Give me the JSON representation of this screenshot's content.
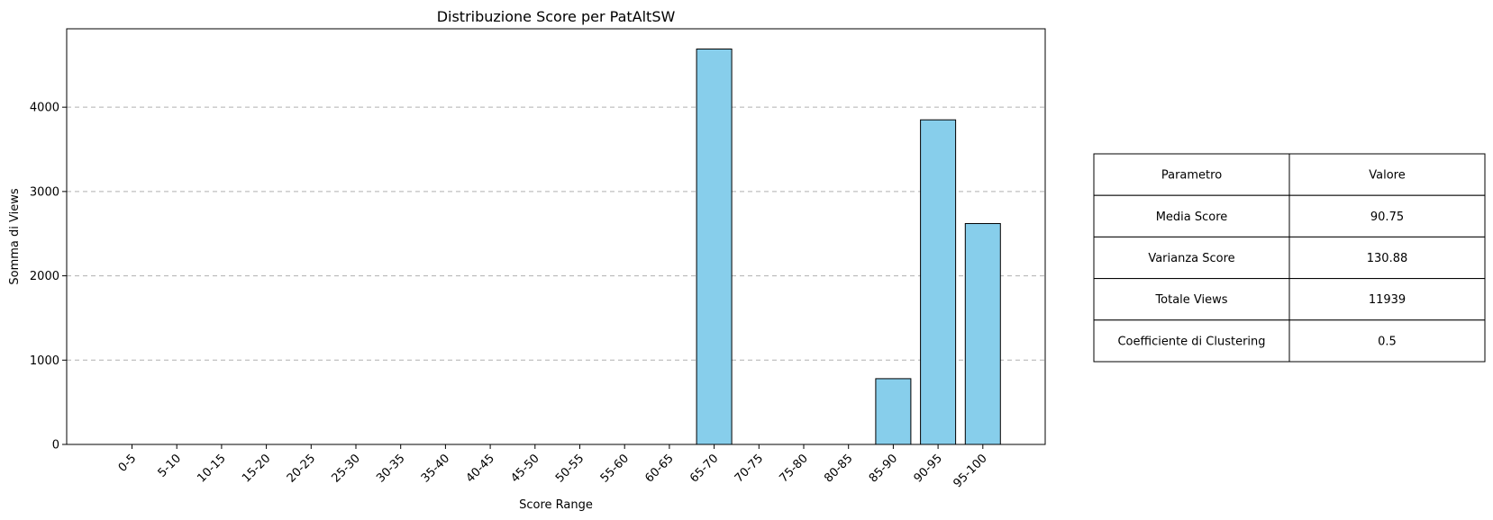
{
  "chart_data": {
    "type": "bar",
    "title": "Distribuzione Score per PatAltSW",
    "xlabel": "Score Range",
    "ylabel": "Somma di Views",
    "categories": [
      "0-5",
      "5-10",
      "10-15",
      "15-20",
      "20-25",
      "25-30",
      "30-35",
      "35-40",
      "40-45",
      "45-50",
      "50-55",
      "55-60",
      "60-65",
      "65-70",
      "70-75",
      "75-80",
      "80-85",
      "85-90",
      "90-95",
      "95-100"
    ],
    "values": [
      0,
      0,
      0,
      0,
      0,
      0,
      0,
      0,
      0,
      0,
      0,
      0,
      0,
      4690,
      0,
      0,
      0,
      780,
      3850,
      2620
    ],
    "ylim": [
      0,
      4930
    ],
    "yticks": [
      0,
      1000,
      2000,
      3000,
      4000
    ],
    "grid": "y-dashed",
    "bar_color": "#87CEEB",
    "edge_color": "#000000"
  },
  "table": {
    "header": [
      "Parametro",
      "Valore"
    ],
    "rows": [
      [
        "Media Score",
        "90.75"
      ],
      [
        "Varianza Score",
        "130.88"
      ],
      [
        "Totale Views",
        "11939"
      ],
      [
        "Coefficiente di Clustering",
        "0.5"
      ]
    ]
  }
}
